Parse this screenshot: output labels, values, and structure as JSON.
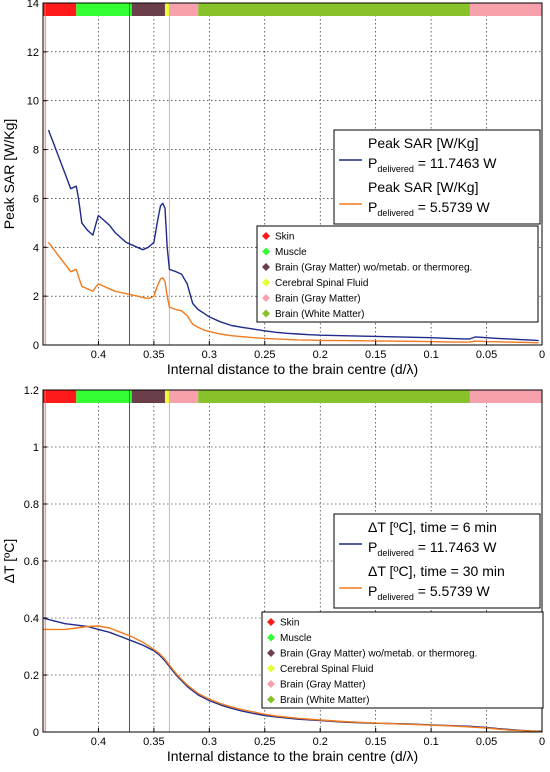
{
  "chart_data": [
    {
      "type": "line",
      "xlabel": "Internal distance to the brain centre (d/λ)",
      "ylabel": "Peak SAR [W/Kg]",
      "xlim": [
        0.45,
        0
      ],
      "ylim": [
        0,
        14
      ],
      "x_ticks": [
        0.4,
        0.35,
        0.3,
        0.25,
        0.2,
        0.15,
        0.1,
        0.05,
        0
      ],
      "x_tick_labels": [
        "0.4",
        "0.35",
        "0.3",
        "0.25",
        "0.2",
        "0.15",
        "0.1",
        "0.05",
        "0"
      ],
      "y_ticks": [
        0,
        2,
        4,
        6,
        8,
        10,
        12,
        14
      ],
      "y_tick_labels": [
        "0",
        "2",
        "4",
        "6",
        "8",
        "10",
        "12",
        "14"
      ],
      "grid": true,
      "legend_placement": "right-center",
      "series": [
        {
          "label_main": "Peak SAR [W/Kg]",
          "label_sub_prefix": "P",
          "label_sub": "delivered",
          "label_value": " = 11.7463 W",
          "color": "#1f2a8a",
          "x": [
            0.445,
            0.44,
            0.435,
            0.43,
            0.425,
            0.42,
            0.418,
            0.415,
            0.41,
            0.405,
            0.402,
            0.4,
            0.395,
            0.39,
            0.385,
            0.38,
            0.375,
            0.37,
            0.365,
            0.36,
            0.355,
            0.35,
            0.347,
            0.344,
            0.342,
            0.34,
            0.338,
            0.336,
            0.333,
            0.33,
            0.325,
            0.32,
            0.315,
            0.31,
            0.305,
            0.3,
            0.29,
            0.28,
            0.27,
            0.26,
            0.25,
            0.24,
            0.23,
            0.22,
            0.21,
            0.2,
            0.18,
            0.16,
            0.14,
            0.12,
            0.1,
            0.09,
            0.08,
            0.07,
            0.065,
            0.06,
            0.05,
            0.04,
            0.03,
            0.02,
            0.01,
            0.003
          ],
          "values": [
            8.8,
            8.2,
            7.6,
            7.0,
            6.4,
            6.5,
            6.0,
            5.0,
            4.7,
            4.5,
            5.0,
            5.3,
            5.1,
            4.9,
            4.6,
            4.4,
            4.2,
            4.1,
            4.0,
            3.9,
            4.0,
            4.2,
            5.0,
            5.7,
            5.8,
            5.6,
            4.0,
            3.1,
            3.05,
            3.0,
            2.9,
            2.5,
            1.7,
            1.45,
            1.3,
            1.15,
            0.95,
            0.8,
            0.72,
            0.65,
            0.58,
            0.52,
            0.48,
            0.45,
            0.42,
            0.4,
            0.38,
            0.36,
            0.34,
            0.32,
            0.3,
            0.28,
            0.26,
            0.25,
            0.25,
            0.33,
            0.3,
            0.27,
            0.25,
            0.22,
            0.2,
            0.18
          ]
        },
        {
          "label_main": "Peak SAR [W/Kg]",
          "label_sub_prefix": "P",
          "label_sub": "delivered",
          "label_value": " = 5.5739 W",
          "color": "#f07a1e",
          "x": [
            0.445,
            0.44,
            0.435,
            0.43,
            0.425,
            0.42,
            0.418,
            0.415,
            0.41,
            0.405,
            0.402,
            0.4,
            0.395,
            0.39,
            0.385,
            0.38,
            0.375,
            0.37,
            0.365,
            0.36,
            0.355,
            0.35,
            0.347,
            0.344,
            0.342,
            0.34,
            0.338,
            0.336,
            0.333,
            0.33,
            0.325,
            0.32,
            0.315,
            0.31,
            0.305,
            0.3,
            0.29,
            0.28,
            0.27,
            0.26,
            0.25,
            0.24,
            0.23,
            0.22,
            0.21,
            0.2,
            0.18,
            0.16,
            0.14,
            0.12,
            0.1,
            0.09,
            0.08,
            0.07,
            0.065,
            0.06,
            0.05,
            0.04,
            0.03,
            0.02,
            0.01,
            0.003
          ],
          "values": [
            4.2,
            3.9,
            3.6,
            3.3,
            3.0,
            3.1,
            2.8,
            2.4,
            2.3,
            2.2,
            2.4,
            2.5,
            2.4,
            2.3,
            2.2,
            2.15,
            2.1,
            2.05,
            2.0,
            1.95,
            1.9,
            2.0,
            2.4,
            2.7,
            2.75,
            2.6,
            2.0,
            1.55,
            1.5,
            1.45,
            1.4,
            1.2,
            0.85,
            0.72,
            0.62,
            0.55,
            0.45,
            0.38,
            0.34,
            0.3,
            0.27,
            0.25,
            0.23,
            0.21,
            0.2,
            0.19,
            0.18,
            0.17,
            0.16,
            0.15,
            0.14,
            0.13,
            0.12,
            0.12,
            0.12,
            0.16,
            0.14,
            0.13,
            0.12,
            0.11,
            0.1,
            0.09
          ]
        }
      ]
    },
    {
      "type": "line",
      "xlabel": "Internal distance to the brain centre (d/λ)",
      "ylabel": "ΔT [ºC]",
      "xlim": [
        0.45,
        0
      ],
      "ylim": [
        0,
        1.2
      ],
      "x_ticks": [
        0.4,
        0.35,
        0.3,
        0.25,
        0.2,
        0.15,
        0.1,
        0.05,
        0
      ],
      "x_tick_labels": [
        "0.4",
        "0.35",
        "0.3",
        "0.25",
        "0.2",
        "0.15",
        "0.1",
        "0.05",
        "0"
      ],
      "y_ticks": [
        0,
        0.2,
        0.4,
        0.6,
        0.8,
        1,
        1.2
      ],
      "y_tick_labels": [
        "0",
        "0.2",
        "0.4",
        "0.6",
        "0.8",
        "1",
        "1.2"
      ],
      "grid": true,
      "legend_placement": "right-center",
      "series": [
        {
          "label_main": "ΔT [ºC], time = 6 min",
          "label_sub_prefix": "P",
          "label_sub": "delivered",
          "label_value": " = 11.7463 W",
          "color": "#1f2a8a",
          "x": [
            0.45,
            0.44,
            0.43,
            0.42,
            0.41,
            0.4,
            0.39,
            0.38,
            0.37,
            0.36,
            0.35,
            0.345,
            0.34,
            0.335,
            0.33,
            0.325,
            0.32,
            0.31,
            0.3,
            0.29,
            0.28,
            0.27,
            0.26,
            0.25,
            0.24,
            0.22,
            0.2,
            0.18,
            0.16,
            0.14,
            0.12,
            0.1,
            0.08,
            0.065,
            0.05,
            0.04,
            0.03,
            0.02,
            0.01,
            0.0
          ],
          "values": [
            0.4,
            0.39,
            0.38,
            0.375,
            0.37,
            0.36,
            0.35,
            0.335,
            0.32,
            0.305,
            0.285,
            0.27,
            0.25,
            0.225,
            0.2,
            0.18,
            0.16,
            0.13,
            0.11,
            0.095,
            0.083,
            0.073,
            0.065,
            0.058,
            0.053,
            0.045,
            0.04,
            0.035,
            0.032,
            0.03,
            0.028,
            0.025,
            0.022,
            0.02,
            0.016,
            0.012,
            0.009,
            0.006,
            0.004,
            0.003
          ]
        },
        {
          "label_main": "ΔT [ºC], time = 30 min",
          "label_sub_prefix": "P",
          "label_sub": "delivered",
          "label_value": " = 5.5739 W",
          "color": "#f07a1e",
          "x": [
            0.45,
            0.44,
            0.43,
            0.42,
            0.41,
            0.4,
            0.39,
            0.38,
            0.37,
            0.36,
            0.35,
            0.345,
            0.34,
            0.335,
            0.33,
            0.325,
            0.32,
            0.31,
            0.3,
            0.29,
            0.28,
            0.27,
            0.26,
            0.25,
            0.24,
            0.22,
            0.2,
            0.18,
            0.16,
            0.14,
            0.12,
            0.1,
            0.08,
            0.065,
            0.05,
            0.04,
            0.03,
            0.02,
            0.01,
            0.0
          ],
          "values": [
            0.36,
            0.36,
            0.36,
            0.365,
            0.37,
            0.372,
            0.365,
            0.35,
            0.335,
            0.315,
            0.29,
            0.275,
            0.255,
            0.23,
            0.205,
            0.185,
            0.165,
            0.135,
            0.115,
            0.1,
            0.088,
            0.078,
            0.07,
            0.062,
            0.056,
            0.048,
            0.042,
            0.037,
            0.033,
            0.03,
            0.027,
            0.024,
            0.021,
            0.018,
            0.014,
            0.01,
            0.007,
            0.005,
            0.003,
            0.002
          ]
        }
      ]
    }
  ],
  "tissue_legend": [
    {
      "label": "Skin",
      "color": "#ff1a1a"
    },
    {
      "label": "Muscle",
      "color": "#33ff33"
    },
    {
      "label": "Brain (Gray Matter) wo/metab. or thermoreg.",
      "color": "#6b3f4a"
    },
    {
      "label": "Cerebral Spinal Fluid",
      "color": "#e6ff33"
    },
    {
      "label": "Brain (Gray Matter)",
      "color": "#f7a1ad"
    },
    {
      "label": "Brain (White Matter)",
      "color": "#88c22b"
    }
  ],
  "tissue_bands": [
    {
      "from": 0.45,
      "to": 0.42,
      "tissue": 0
    },
    {
      "from": 0.42,
      "to": 0.37,
      "tissue": 1
    },
    {
      "from": 0.37,
      "to": 0.34,
      "tissue": 2
    },
    {
      "from": 0.34,
      "to": 0.336,
      "tissue": 3
    },
    {
      "from": 0.336,
      "to": 0.31,
      "tissue": 4
    },
    {
      "from": 0.31,
      "to": 0.065,
      "tissue": 5
    },
    {
      "from": 0.065,
      "to": 0.0,
      "tissue": 4
    }
  ],
  "boundary_lines": [
    {
      "x": 0.448,
      "color": "#ff6666"
    },
    {
      "x": 0.372,
      "color": "#7a4a55"
    },
    {
      "x": 0.336,
      "color": "#f7a1ad"
    }
  ]
}
